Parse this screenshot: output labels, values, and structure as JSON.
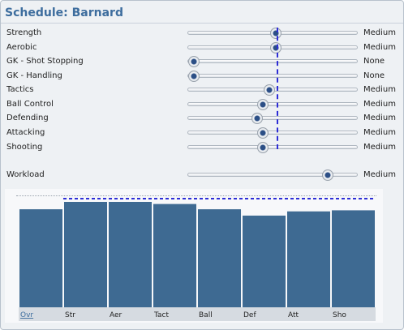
{
  "window": {
    "title": "Schedule: Barnard"
  },
  "sliders": [
    {
      "label": "Strength",
      "value_label": "Medium",
      "level": 0.52
    },
    {
      "label": "Aerobic",
      "value_label": "Medium",
      "level": 0.52
    },
    {
      "label": "GK - Shot Stopping",
      "value_label": "None",
      "level": 0.0
    },
    {
      "label": "GK - Handling",
      "value_label": "None",
      "level": 0.0
    },
    {
      "label": "Tactics",
      "value_label": "Medium",
      "level": 0.48
    },
    {
      "label": "Ball Control",
      "value_label": "Medium",
      "level": 0.44
    },
    {
      "label": "Defending",
      "value_label": "Medium",
      "level": 0.4
    },
    {
      "label": "Attacking",
      "value_label": "Medium",
      "level": 0.44
    },
    {
      "label": "Shooting",
      "value_label": "Medium",
      "level": 0.44
    }
  ],
  "workload": {
    "label": "Workload",
    "value_label": "Medium",
    "level": 0.85
  },
  "colors": {
    "accent": "#3d6d9e",
    "bar": "#3e6a92",
    "dashed_line": "#2d2dd6"
  },
  "chart_data": {
    "type": "bar",
    "categories": [
      "Ovr",
      "Str",
      "Aer",
      "Tact",
      "Ball",
      "Def",
      "Att",
      "Sho"
    ],
    "values": [
      93,
      100,
      100,
      98,
      93,
      87,
      91,
      92
    ],
    "reference_line": 100,
    "ylim": [
      0,
      100
    ],
    "grid": false,
    "highlighted_category": "Ovr"
  }
}
